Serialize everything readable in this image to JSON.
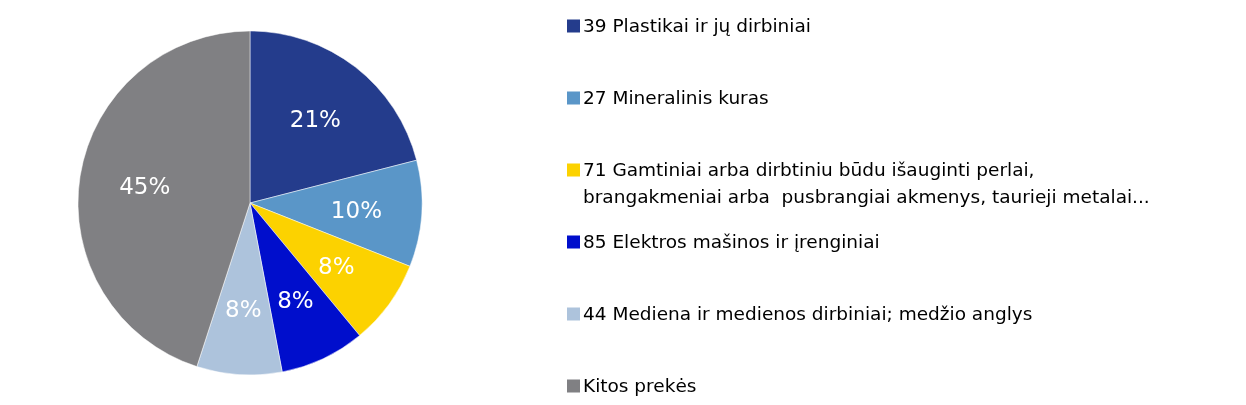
{
  "chart_data": {
    "type": "pie",
    "categories": [
      "39 Plastikai ir jų dirbiniai",
      "27 Mineralinis kuras",
      "71 Gamtiniai arba dirbtiniu būdu išauginti perlai, brangakmeniai arba  pusbrangiai akmenys, taurieji metalai...",
      "85 Elektros mašinos ir įrenginiai",
      "44 Mediena ir medienos dirbiniai; medžio anglys",
      "Kitos prekės"
    ],
    "values": [
      21,
      10,
      8,
      8,
      8,
      45
    ],
    "colors": [
      "#243c8c",
      "#5a96c8",
      "#fcd200",
      "#000ecc",
      "#adc3dc",
      "#808083"
    ],
    "value_labels": [
      "21%",
      "10%",
      "8%",
      "8%",
      "8%",
      "45%"
    ],
    "legend": "right"
  }
}
